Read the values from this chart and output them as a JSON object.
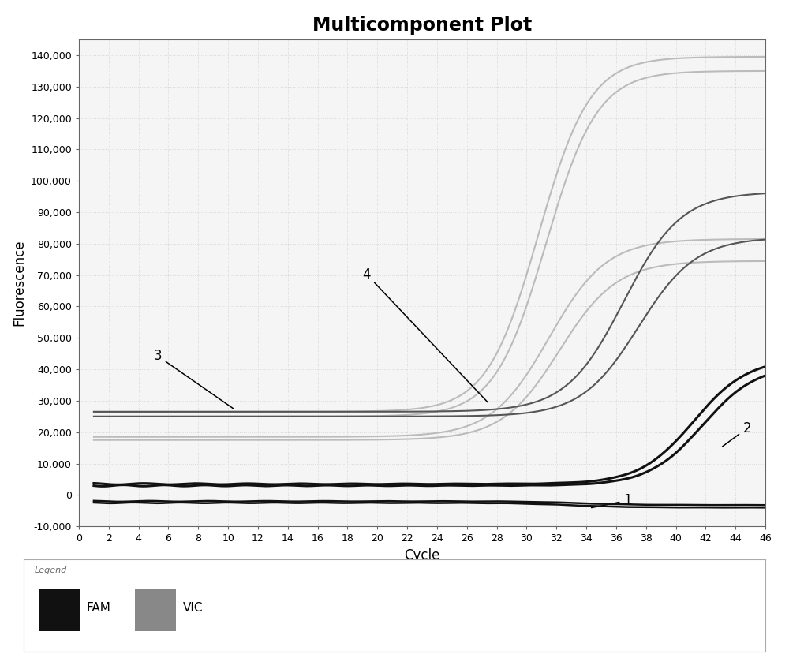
{
  "title": "Multicomponent Plot",
  "xlabel": "Cycle",
  "ylabel": "Fluorescence",
  "xlim": [
    0,
    46
  ],
  "ylim": [
    -10000,
    145000
  ],
  "xticks": [
    0,
    2,
    4,
    6,
    8,
    10,
    12,
    14,
    16,
    18,
    20,
    22,
    24,
    26,
    28,
    30,
    32,
    34,
    36,
    38,
    40,
    42,
    44,
    46
  ],
  "yticks": [
    -10000,
    0,
    10000,
    20000,
    30000,
    40000,
    50000,
    60000,
    70000,
    80000,
    90000,
    100000,
    110000,
    120000,
    130000,
    140000
  ],
  "ytick_labels": [
    "-10,000",
    "0",
    "10,000",
    "20,000",
    "30,000",
    "40,000",
    "50,000",
    "60,000",
    "70,000",
    "80,000",
    "90,000",
    "100,000",
    "110,000",
    "120,000",
    "130,000",
    "140,000"
  ],
  "plot_bg_color": "#f5f5f5",
  "fig_bg_color": "#ffffff",
  "grid_color": "#d8d8d8",
  "title_fontsize": 17,
  "axis_label_fontsize": 12,
  "tick_fontsize": 9,
  "fam_color": "#111111",
  "vic_dark_color": "#555555",
  "vic_mid_color": "#888888",
  "vic_light_color": "#bbbbbb",
  "lw_fam": 1.8,
  "lw_vic": 1.5,
  "annot_fontsize": 12,
  "legend_label_fontsize": 11,
  "legend_title_fontsize": 8
}
